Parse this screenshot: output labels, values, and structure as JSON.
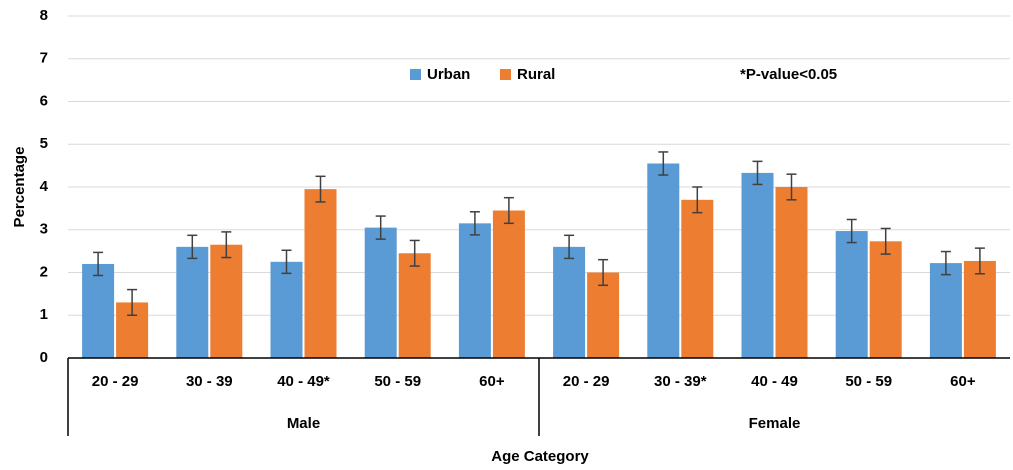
{
  "chart_data": {
    "type": "bar",
    "y_label": "Percentage",
    "x_label": "Age Category",
    "annotation": "*P-value<0.05",
    "groups": [
      {
        "name": "Male",
        "categories": [
          "20 - 29",
          "30 - 39",
          "40 - 49*",
          "50 - 59",
          "60+"
        ]
      },
      {
        "name": "Female",
        "categories": [
          "20 - 29",
          "30 - 39*",
          "40 - 49",
          "50 - 59",
          "60+"
        ]
      }
    ],
    "series": [
      {
        "name": "Urban",
        "color": "#5b9bd5",
        "values": [
          2.2,
          2.6,
          2.25,
          3.05,
          3.15,
          2.6,
          4.55,
          4.33,
          2.97,
          2.22
        ],
        "errors": [
          0.27,
          0.27,
          0.27,
          0.27,
          0.27,
          0.27,
          0.27,
          0.27,
          0.27,
          0.27
        ]
      },
      {
        "name": "Rural",
        "color": "#ed7d31",
        "values": [
          1.3,
          2.65,
          3.95,
          2.45,
          3.45,
          2.0,
          3.7,
          4.0,
          2.73,
          2.27
        ],
        "errors": [
          0.3,
          0.3,
          0.3,
          0.3,
          0.3,
          0.3,
          0.3,
          0.3,
          0.3,
          0.3
        ]
      }
    ],
    "ylim": [
      0,
      8
    ],
    "yticks": [
      0,
      1,
      2,
      3,
      4,
      5,
      6,
      7,
      8
    ],
    "grid": true
  }
}
